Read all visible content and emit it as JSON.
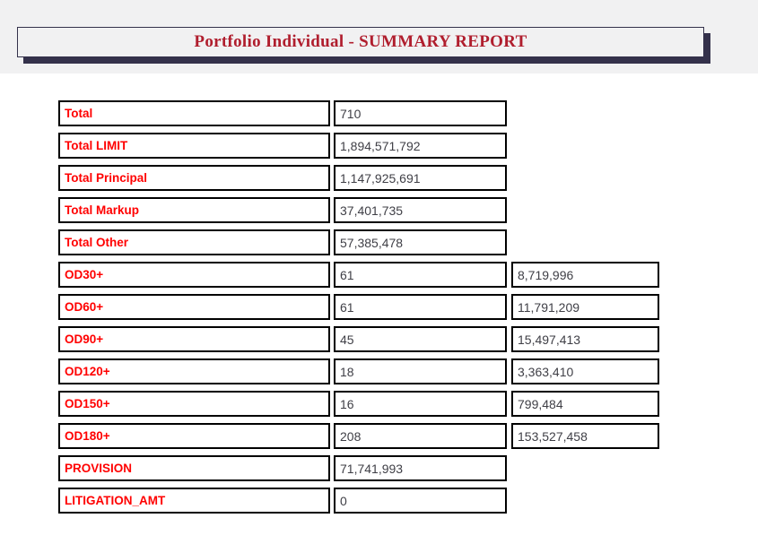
{
  "title": "Portfolio Individual - SUMMARY REPORT",
  "colors": {
    "title_red": "#B01E2E",
    "label_red": "#FF0000",
    "value_gray": "#3F3F46",
    "border_black": "#000000",
    "shadow_navy": "#34314B",
    "header_bg": "#F1F1F2"
  },
  "rows": [
    {
      "label": "Total",
      "value": "710",
      "amount": null
    },
    {
      "label": "Total LIMIT",
      "value": "1,894,571,792",
      "amount": null
    },
    {
      "label": "Total Principal",
      "value": "1,147,925,691",
      "amount": null
    },
    {
      "label": "Total Markup",
      "value": "37,401,735",
      "amount": null
    },
    {
      "label": "Total Other",
      "value": "57,385,478",
      "amount": null
    },
    {
      "label": "OD30+",
      "value": "61",
      "amount": "8,719,996"
    },
    {
      "label": "OD60+",
      "value": "61",
      "amount": "11,791,209"
    },
    {
      "label": "OD90+",
      "value": "45",
      "amount": "15,497,413"
    },
    {
      "label": "OD120+",
      "value": "18",
      "amount": "3,363,410"
    },
    {
      "label": "OD150+",
      "value": "16",
      "amount": "799,484"
    },
    {
      "label": "OD180+",
      "value": "208",
      "amount": "153,527,458"
    },
    {
      "label": "PROVISION",
      "value": "71,741,993",
      "amount": null
    },
    {
      "label": "LITIGATION_AMT",
      "value": "0",
      "amount": null
    }
  ]
}
